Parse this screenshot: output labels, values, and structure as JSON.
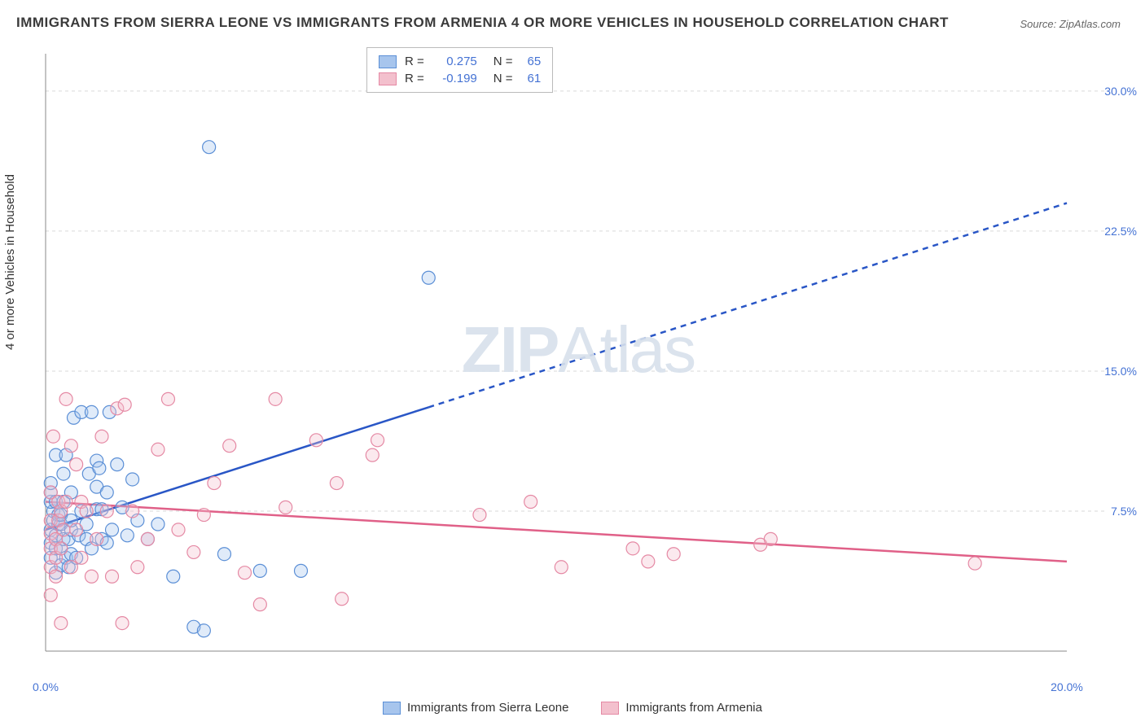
{
  "title": "IMMIGRANTS FROM SIERRA LEONE VS IMMIGRANTS FROM ARMENIA 4 OR MORE VEHICLES IN HOUSEHOLD CORRELATION CHART",
  "source": "Source: ZipAtlas.com",
  "y_axis_label": "4 or more Vehicles in Household",
  "watermark": {
    "bold": "ZIP",
    "light": "Atlas"
  },
  "chart": {
    "type": "scatter",
    "xlim": [
      0,
      20
    ],
    "ylim": [
      0,
      32
    ],
    "xticks": [
      {
        "v": 0,
        "label": "0.0%"
      },
      {
        "v": 20,
        "label": "20.0%"
      }
    ],
    "yticks": [
      {
        "v": 7.5,
        "label": "7.5%"
      },
      {
        "v": 15,
        "label": "15.0%"
      },
      {
        "v": 22.5,
        "label": "22.5%"
      },
      {
        "v": 30,
        "label": "30.0%"
      }
    ],
    "grid_color": "#d9d9d9",
    "axis_color": "#888888",
    "background": "#ffffff",
    "marker_radius": 8,
    "marker_fill_opacity": 0.35,
    "marker_stroke_width": 1.2,
    "series": [
      {
        "name": "Immigrants from Sierra Leone",
        "color_stroke": "#5b8fd6",
        "color_fill": "#a7c5ed",
        "legend_swatch_fill": "#a7c5ed",
        "legend_swatch_stroke": "#5b8fd6",
        "R": "0.275",
        "N": "65",
        "trend": {
          "color": "#2956c6",
          "width": 2.5,
          "x1": 0,
          "y1": 6.5,
          "x2": 20,
          "y2": 24.0,
          "solid_until_x": 7.5
        },
        "points": [
          [
            0.1,
            5.0
          ],
          [
            0.1,
            5.8
          ],
          [
            0.1,
            6.5
          ],
          [
            0.15,
            7.0
          ],
          [
            0.15,
            7.5
          ],
          [
            0.1,
            8.0
          ],
          [
            0.1,
            8.5
          ],
          [
            0.1,
            9.0
          ],
          [
            0.2,
            4.2
          ],
          [
            0.2,
            5.5
          ],
          [
            0.2,
            6.2
          ],
          [
            0.25,
            6.8
          ],
          [
            0.25,
            7.3
          ],
          [
            0.2,
            8.0
          ],
          [
            0.2,
            10.5
          ],
          [
            0.3,
            4.6
          ],
          [
            0.3,
            5.5
          ],
          [
            0.35,
            6.0
          ],
          [
            0.3,
            6.8
          ],
          [
            0.3,
            7.3
          ],
          [
            0.35,
            8.0
          ],
          [
            0.35,
            9.5
          ],
          [
            0.4,
            5.0
          ],
          [
            0.4,
            10.5
          ],
          [
            0.45,
            4.5
          ],
          [
            0.45,
            6.0
          ],
          [
            0.5,
            5.2
          ],
          [
            0.5,
            6.5
          ],
          [
            0.5,
            7.0
          ],
          [
            0.5,
            8.5
          ],
          [
            0.55,
            12.5
          ],
          [
            0.6,
            5.0
          ],
          [
            0.65,
            6.2
          ],
          [
            0.7,
            7.5
          ],
          [
            0.7,
            12.8
          ],
          [
            0.8,
            6.0
          ],
          [
            0.8,
            6.8
          ],
          [
            0.85,
            9.5
          ],
          [
            0.9,
            5.5
          ],
          [
            0.9,
            12.8
          ],
          [
            1.0,
            7.6
          ],
          [
            1.0,
            8.8
          ],
          [
            1.0,
            10.2
          ],
          [
            1.05,
            9.8
          ],
          [
            1.1,
            6.0
          ],
          [
            1.1,
            7.6
          ],
          [
            1.2,
            5.8
          ],
          [
            1.2,
            8.5
          ],
          [
            1.25,
            12.8
          ],
          [
            1.3,
            6.5
          ],
          [
            1.4,
            10.0
          ],
          [
            1.5,
            7.7
          ],
          [
            1.6,
            6.2
          ],
          [
            1.7,
            9.2
          ],
          [
            1.8,
            7.0
          ],
          [
            2.0,
            6.0
          ],
          [
            2.2,
            6.8
          ],
          [
            2.5,
            4.0
          ],
          [
            2.9,
            1.3
          ],
          [
            3.1,
            1.1
          ],
          [
            3.2,
            27.0
          ],
          [
            3.5,
            5.2
          ],
          [
            4.2,
            4.3
          ],
          [
            5.0,
            4.3
          ],
          [
            7.5,
            20.0
          ]
        ]
      },
      {
        "name": "Immigrants from Armenia",
        "color_stroke": "#e589a4",
        "color_fill": "#f3c0cd",
        "legend_swatch_fill": "#f3c0cd",
        "legend_swatch_stroke": "#e589a4",
        "R": "-0.199",
        "N": "61",
        "trend": {
          "color": "#e06088",
          "width": 2.5,
          "x1": 0,
          "y1": 8.0,
          "x2": 20,
          "y2": 4.8,
          "solid_until_x": 20
        },
        "points": [
          [
            0.1,
            3.0
          ],
          [
            0.1,
            4.5
          ],
          [
            0.1,
            5.5
          ],
          [
            0.1,
            6.3
          ],
          [
            0.1,
            7.0
          ],
          [
            0.1,
            8.5
          ],
          [
            0.15,
            11.5
          ],
          [
            0.2,
            4.0
          ],
          [
            0.2,
            5.0
          ],
          [
            0.2,
            6.0
          ],
          [
            0.25,
            7.0
          ],
          [
            0.25,
            8.0
          ],
          [
            0.3,
            1.5
          ],
          [
            0.3,
            5.5
          ],
          [
            0.3,
            7.5
          ],
          [
            0.35,
            6.5
          ],
          [
            0.4,
            8.0
          ],
          [
            0.4,
            13.5
          ],
          [
            0.5,
            4.5
          ],
          [
            0.5,
            11.0
          ],
          [
            0.6,
            6.5
          ],
          [
            0.6,
            10.0
          ],
          [
            0.7,
            5.0
          ],
          [
            0.7,
            8.0
          ],
          [
            0.8,
            7.5
          ],
          [
            0.9,
            4.0
          ],
          [
            1.0,
            6.0
          ],
          [
            1.1,
            11.5
          ],
          [
            1.2,
            7.5
          ],
          [
            1.3,
            4.0
          ],
          [
            1.4,
            13.0
          ],
          [
            1.5,
            1.5
          ],
          [
            1.55,
            13.2
          ],
          [
            1.7,
            7.5
          ],
          [
            1.8,
            4.5
          ],
          [
            2.0,
            6.0
          ],
          [
            2.2,
            10.8
          ],
          [
            2.4,
            13.5
          ],
          [
            2.6,
            6.5
          ],
          [
            2.9,
            5.3
          ],
          [
            3.1,
            7.3
          ],
          [
            3.3,
            9.0
          ],
          [
            3.6,
            11.0
          ],
          [
            3.9,
            4.2
          ],
          [
            4.2,
            2.5
          ],
          [
            4.5,
            13.5
          ],
          [
            4.7,
            7.7
          ],
          [
            5.3,
            11.3
          ],
          [
            5.7,
            9.0
          ],
          [
            5.8,
            2.8
          ],
          [
            6.4,
            10.5
          ],
          [
            6.5,
            11.3
          ],
          [
            8.5,
            7.3
          ],
          [
            9.5,
            8.0
          ],
          [
            10.1,
            4.5
          ],
          [
            11.5,
            5.5
          ],
          [
            11.8,
            4.8
          ],
          [
            12.3,
            5.2
          ],
          [
            14.0,
            5.7
          ],
          [
            14.2,
            6.0
          ],
          [
            18.2,
            4.7
          ]
        ]
      }
    ]
  },
  "legend_top_labels": {
    "R": "R  =",
    "N": "N  ="
  },
  "legend_bottom": [
    {
      "label": "Immigrants from Sierra Leone",
      "fill": "#a7c5ed",
      "stroke": "#5b8fd6"
    },
    {
      "label": "Immigrants from Armenia",
      "fill": "#f3c0cd",
      "stroke": "#e589a4"
    }
  ]
}
